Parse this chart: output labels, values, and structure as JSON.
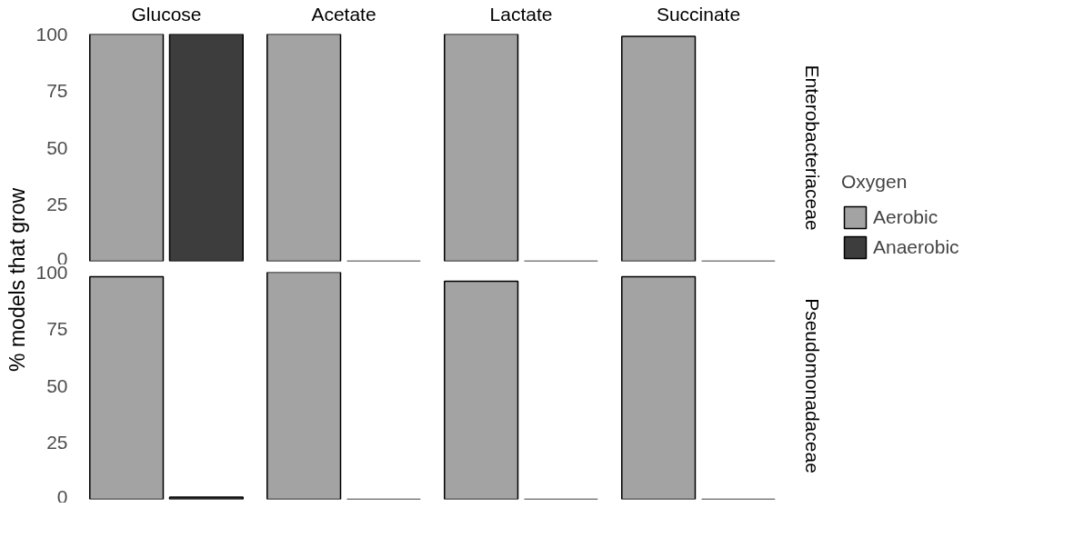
{
  "chart_data": [
    {
      "type": "bar",
      "ylabel": "% models that grow",
      "y2label": "Enterobacteriaceae",
      "legend": "right",
      "legend_title": "Oxygen",
      "categories": [
        "Glucose",
        "Acetate",
        "Lactate",
        "Succinate"
      ],
      "series": [
        {
          "name": "Aerobic",
          "color": "#a3a3a3",
          "values": [
            100,
            100,
            100,
            99
          ]
        },
        {
          "name": "Anaerobic",
          "color": "#3d3d3d",
          "values": [
            100,
            0,
            0,
            0
          ]
        }
      ],
      "ylim": [
        0,
        100
      ],
      "yticks": [
        0,
        25,
        50,
        75,
        100
      ]
    },
    {
      "type": "bar",
      "y2label": "Pseudomonadaceae",
      "categories": [
        null,
        null,
        null,
        null
      ],
      "series": [
        {
          "color": "#a3a3a3",
          "values": [
            98,
            100,
            96,
            98
          ]
        },
        {
          "color": "#3d3d3d",
          "values": [
            1,
            0,
            0,
            0
          ]
        }
      ],
      "ylim": [
        0,
        100
      ],
      "yticks": [
        0,
        25,
        50,
        75,
        100
      ],
      "tick_labels": "y"
    }
  ]
}
